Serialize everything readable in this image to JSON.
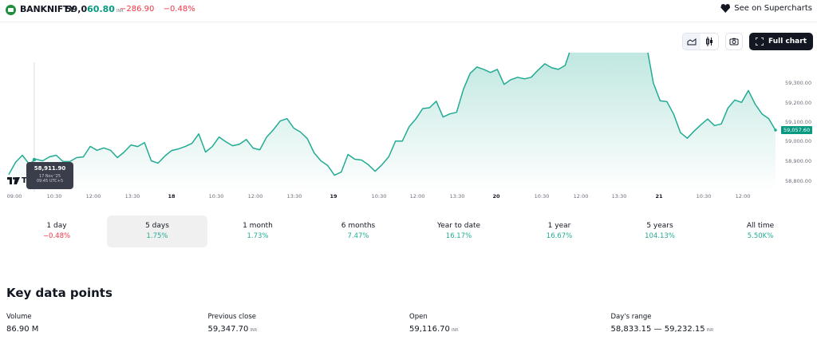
{
  "header": {
    "symbol": "BANKNIFTY",
    "price_int": "59,0",
    "price_dec": "60.80",
    "currency": "INR",
    "change_abs": "−286.90",
    "change_pct": "−0.48%",
    "supercharts_label": "See on Supercharts"
  },
  "toolbar": {
    "line_chart_icon": "area-chart-icon",
    "candle_chart_icon": "candlestick-icon",
    "camera_icon": "camera-icon",
    "full_chart_label": "Full chart"
  },
  "tooltip": {
    "price": "58,911.90",
    "date": "17 Nov '25",
    "time": "09:45 UTC+5"
  },
  "watermark": "Tra",
  "colors": {
    "line": "#22ab94",
    "positive": "#22ab94",
    "negative": "#f23645",
    "badge": "#089981"
  },
  "chart_data": {
    "type": "area",
    "title": "BANKNIFTY 5 days",
    "x_ticks": [
      "09:00",
      "10:30",
      "12:00",
      "13:30",
      "18",
      "10:30",
      "12:00",
      "13:30",
      "19",
      "10:30",
      "12:00",
      "13:30",
      "20",
      "10:30",
      "12:00",
      "13:30",
      "21",
      "10:30",
      "12:00"
    ],
    "y_ticks": [
      "59,300.00",
      "59,200.00",
      "59,100.00",
      "59,000.00",
      "58,900.00",
      "58,800.00"
    ],
    "ylim": [
      58760,
      59400
    ],
    "last_price_label": "59,057.60",
    "grid": false,
    "series": [
      {
        "name": "BANKNIFTY",
        "values": [
          58834,
          58895,
          58931,
          58887,
          58911,
          58903,
          58923,
          58931,
          58899,
          58899,
          58919,
          58923,
          58976,
          58956,
          58968,
          58956,
          58919,
          58947,
          58983,
          58975,
          58995,
          58903,
          58891,
          58927,
          58955,
          58963,
          58975,
          58991,
          59039,
          58947,
          58975,
          59023,
          58999,
          58979,
          58987,
          59011,
          58967,
          58959,
          59023,
          59060,
          59104,
          59116,
          59068,
          59048,
          59015,
          58943,
          58903,
          58879,
          58830,
          58846,
          58935,
          58911,
          58907,
          58883,
          58850,
          58883,
          58923,
          59003,
          59003,
          59075,
          59115,
          59167,
          59171,
          59204,
          59124,
          59140,
          59148,
          59264,
          59345,
          59377,
          59365,
          59349,
          59365,
          59289,
          59313,
          59325,
          59317,
          59325,
          59361,
          59393,
          59373,
          59365,
          59385,
          59488,
          59488,
          59458,
          59494,
          59482,
          59530,
          59526,
          59510,
          59514,
          59538,
          59494,
          59486,
          59296,
          59206,
          59202,
          59138,
          59045,
          59017,
          59053,
          59085,
          59114,
          59081,
          59089,
          59170,
          59210,
          59198,
          59258,
          59189,
          59140,
          59116,
          59057.6
        ]
      }
    ]
  },
  "periods": [
    {
      "label": "1 day",
      "value": "−0.48%",
      "sign": "neg"
    },
    {
      "label": "5 days",
      "value": "1.75%",
      "sign": "pos",
      "active": true
    },
    {
      "label": "1 month",
      "value": "1.73%",
      "sign": "pos"
    },
    {
      "label": "6 months",
      "value": "7.47%",
      "sign": "pos"
    },
    {
      "label": "Year to date",
      "value": "16.17%",
      "sign": "pos"
    },
    {
      "label": "1 year",
      "value": "16.67%",
      "sign": "pos"
    },
    {
      "label": "5 years",
      "value": "104.13%",
      "sign": "pos"
    },
    {
      "label": "All time",
      "value": "5.50K%",
      "sign": "pos"
    }
  ],
  "key_data": {
    "title": "Key data points",
    "items": [
      {
        "label": "Volume",
        "value": "86.90 M",
        "unit": ""
      },
      {
        "label": "Previous close",
        "value": "59,347.70",
        "unit": "INR"
      },
      {
        "label": "Open",
        "value": "59,116.70",
        "unit": "INR"
      },
      {
        "label": "Day's range",
        "value": "58,833.15 — 59,232.15",
        "unit": "INR"
      }
    ]
  }
}
